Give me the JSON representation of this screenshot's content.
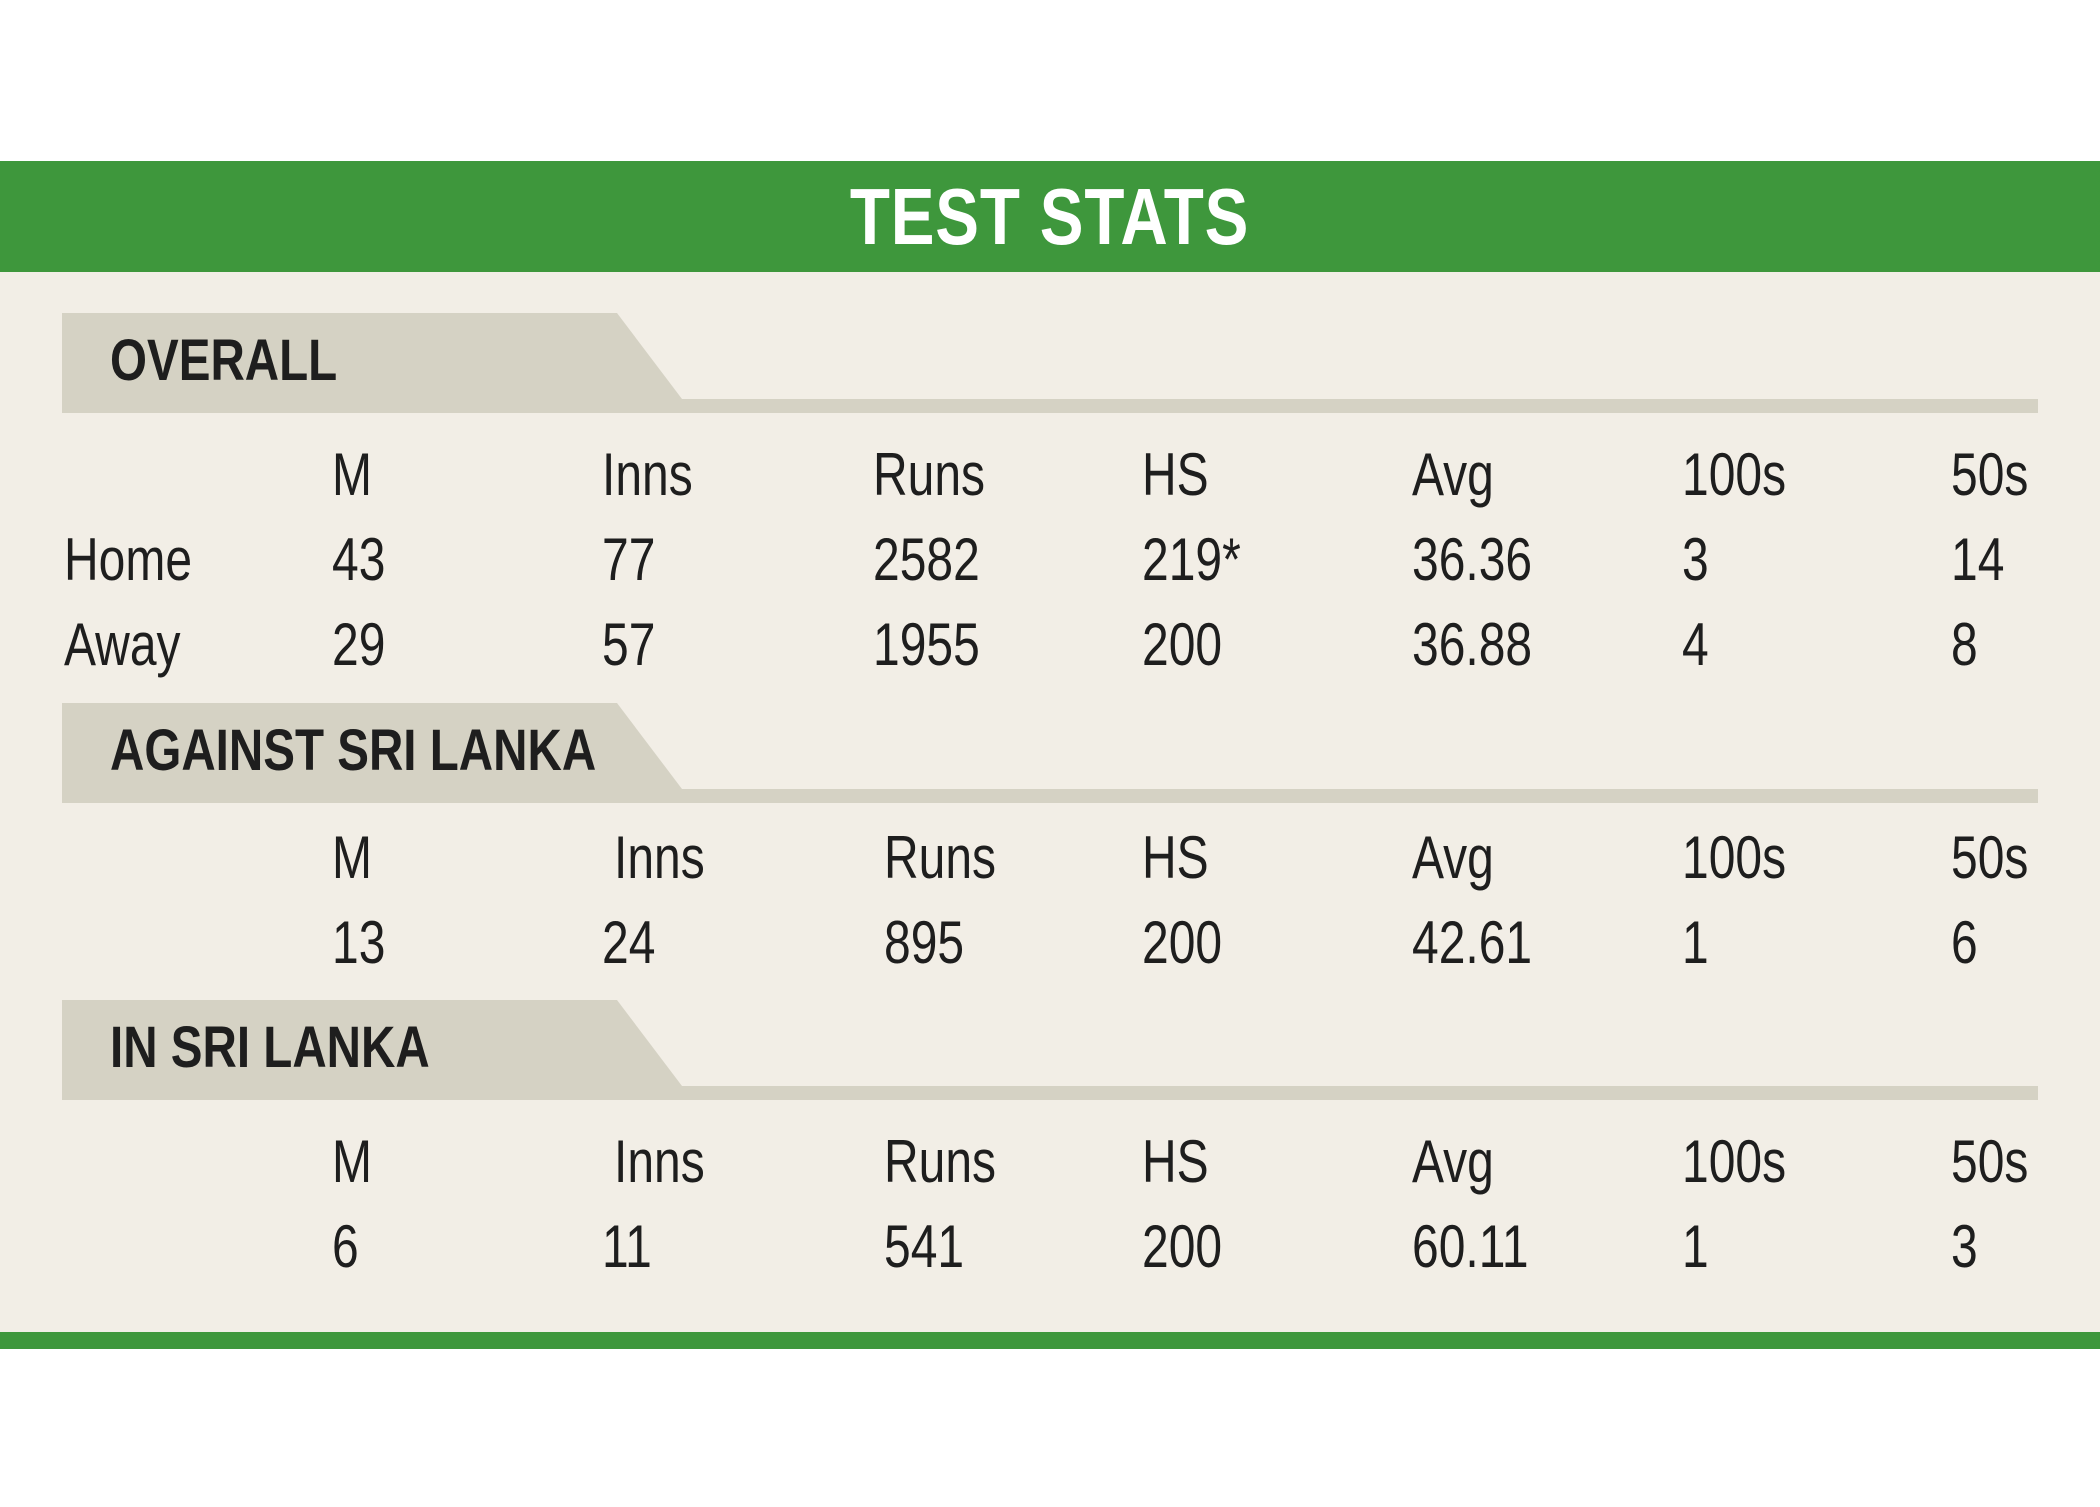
{
  "title": "TEST STATS",
  "sections": [
    {
      "label": "OVERALL",
      "headers": [
        "M",
        "Inns",
        "Runs",
        "HS",
        "Avg",
        "100s",
        "50s"
      ],
      "rows": [
        {
          "label": "Home",
          "values": [
            "43",
            "77",
            "2582",
            "219*",
            "36.36",
            "3",
            "14"
          ]
        },
        {
          "label": "Away",
          "values": [
            "29",
            "57",
            "1955",
            "200",
            "36.88",
            "4",
            "8"
          ]
        }
      ]
    },
    {
      "label": "AGAINST SRI LANKA",
      "headers": [
        "M",
        "Inns",
        "Runs",
        "HS",
        "Avg",
        "100s",
        "50s"
      ],
      "rows": [
        {
          "label": "",
          "values": [
            "13",
            "24",
            "895",
            "200",
            "42.61",
            "1",
            "6"
          ]
        }
      ]
    },
    {
      "label": "IN SRI LANKA",
      "headers": [
        "M",
        "Inns",
        "Runs",
        "HS",
        "Avg",
        "100s",
        "50s"
      ],
      "rows": [
        {
          "label": "",
          "values": [
            "6",
            "11",
            "541",
            "200",
            "60.11",
            "1",
            "3"
          ]
        }
      ]
    }
  ],
  "colors": {
    "brand_green": "#3e973c",
    "panel_background": "#f2eee6",
    "section_band": "#d5d2c4",
    "text": "#1e1e1e"
  }
}
